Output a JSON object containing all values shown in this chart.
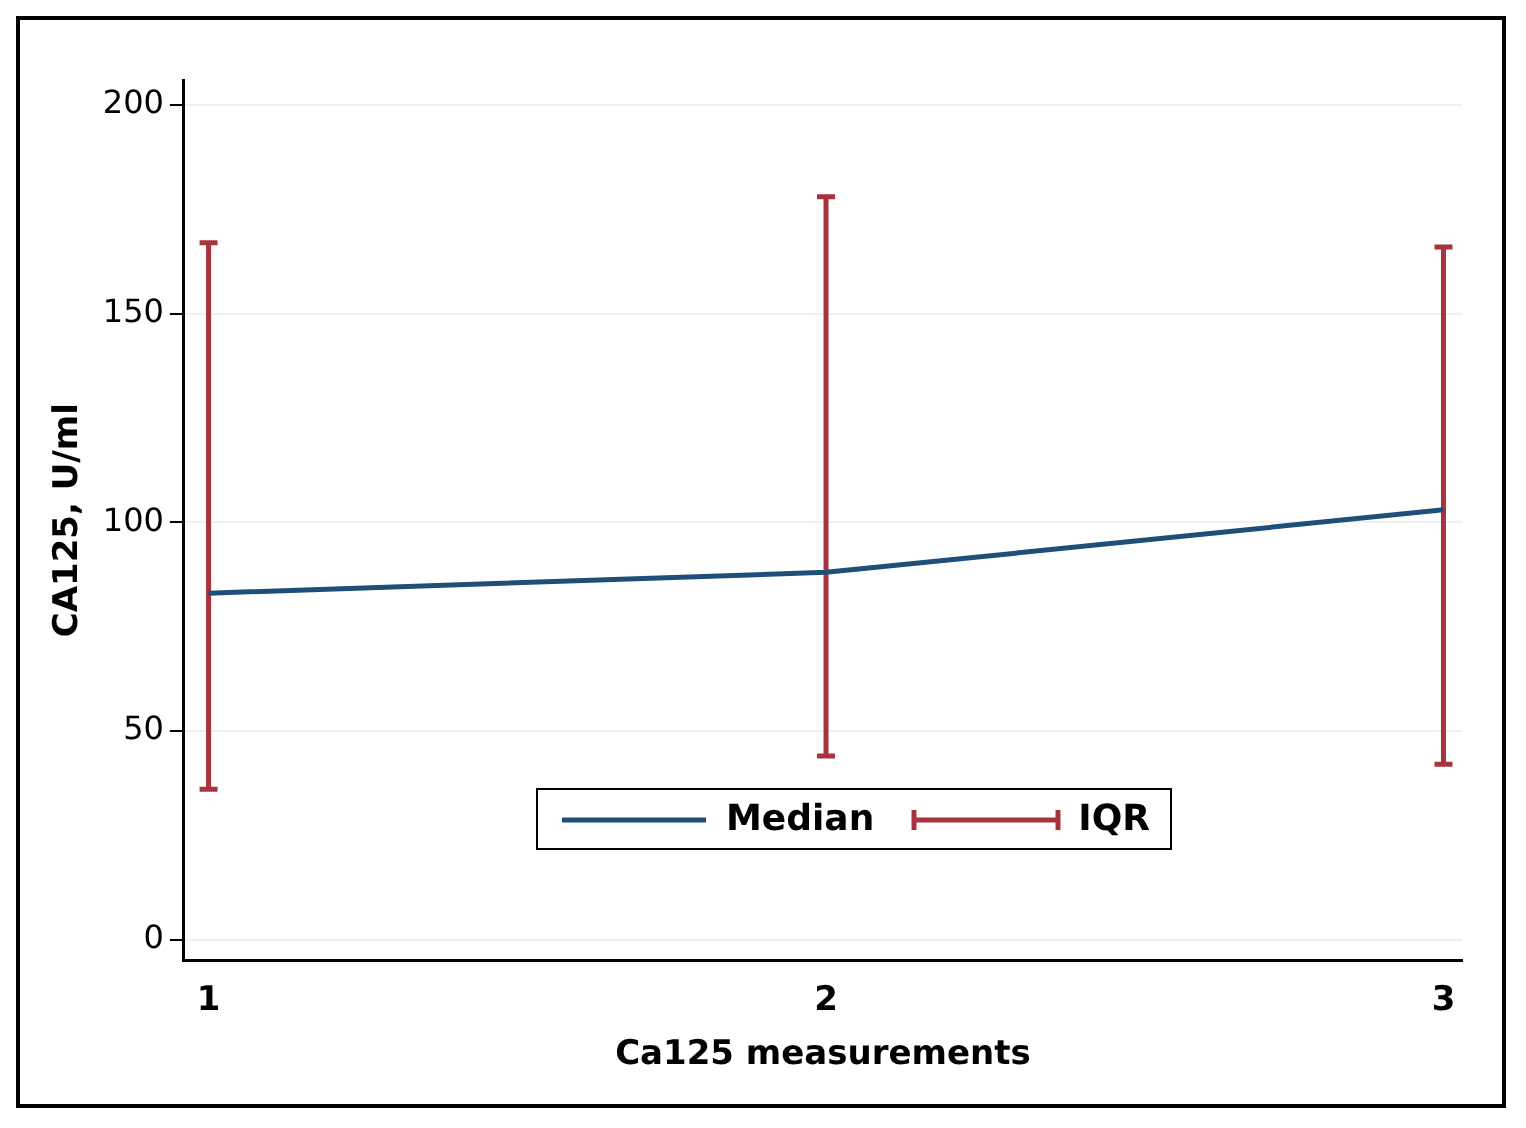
{
  "chart_data": {
    "type": "line",
    "xlabel": "Ca125 measurements",
    "ylabel": "CA125, U/ml",
    "x": [
      1,
      2,
      3
    ],
    "xlim": [
      0.96,
      3.03
    ],
    "xticks": [
      1,
      2,
      3
    ],
    "ylim": [
      -5,
      206
    ],
    "yticks": [
      0,
      50,
      100,
      150,
      200
    ],
    "series": [
      {
        "name": "Median",
        "color": "#1f4e79",
        "values": [
          83,
          88,
          103
        ],
        "errors": [
          [
            36,
            167
          ],
          [
            44,
            178
          ],
          [
            42,
            166
          ]
        ]
      },
      {
        "name": "IQR",
        "color": "#a8323e",
        "values": [
          null,
          null,
          null
        ]
      }
    ],
    "grid": "y",
    "legend": "bottom",
    "marker": "none"
  }
}
